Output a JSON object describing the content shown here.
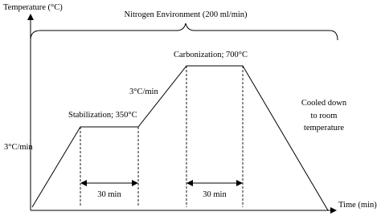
{
  "title": "Nitrogen Environment (200 ml/min)",
  "y_axis_label": "Temperature (°C)",
  "x_axis_label": "Time (min)",
  "labels": {
    "ramp_1": "3°C/min",
    "stabilization": "Stabilization; 350°C",
    "ramp_2": "3°C/min",
    "carbonization": "Carbonization; 700°C",
    "cooling": [
      "Cooled down",
      "to room",
      "temperature"
    ]
  },
  "durations": [
    "30 min",
    "30 min"
  ]
}
